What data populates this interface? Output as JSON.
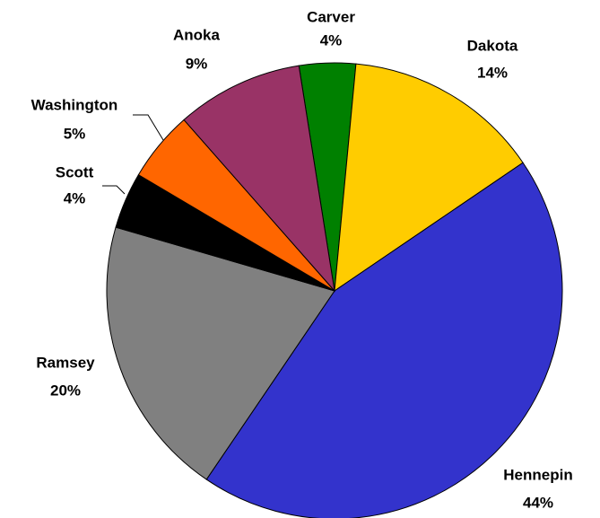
{
  "chart_data": {
    "type": "pie",
    "categories": [
      "Carver",
      "Dakota",
      "Hennepin",
      "Ramsey",
      "Scott",
      "Washington",
      "Anoka"
    ],
    "values": [
      4,
      14,
      44,
      20,
      4,
      5,
      9
    ],
    "value_labels": [
      "4%",
      "14%",
      "44%",
      "20%",
      "4%",
      "5%",
      "9%"
    ],
    "colors": [
      "#008000",
      "#ffcc00",
      "#3333cc",
      "#808080",
      "#000000",
      "#ff6600",
      "#993366"
    ]
  }
}
